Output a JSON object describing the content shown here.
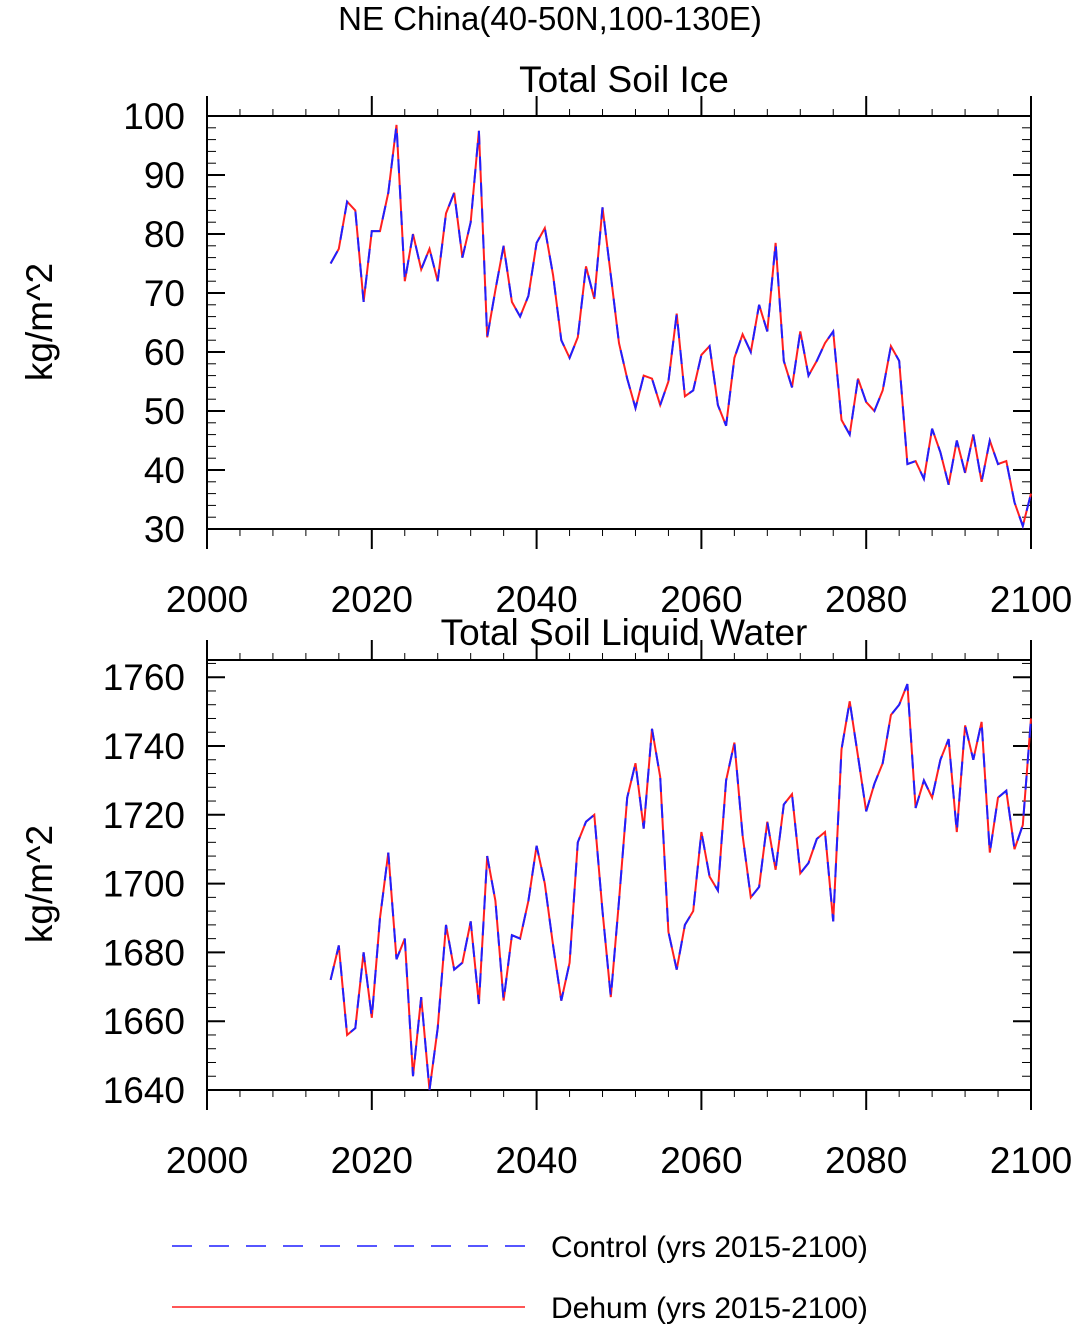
{
  "figure": {
    "title": "NE China(40-50N,100-130E)"
  },
  "colors": {
    "control": "#1f1fff",
    "dehum": "#ff1f1f",
    "axis": "#000000"
  },
  "legend": [
    {
      "label": "Control (yrs 2015-2100)",
      "style": "dashed",
      "color": "#1f1fff"
    },
    {
      "label": "Dehum (yrs 2015-2100)",
      "style": "solid",
      "color": "#ff1f1f"
    }
  ],
  "chart_data": [
    {
      "type": "line",
      "title": "Total Soil Ice",
      "ylabel": "kg/m^2",
      "xlabel": "",
      "xlim": [
        2000,
        2100
      ],
      "ylim": [
        30,
        100
      ],
      "xticks": [
        2000,
        2020,
        2040,
        2060,
        2080,
        2100
      ],
      "yticks": [
        30,
        40,
        50,
        60,
        70,
        80,
        90,
        100
      ],
      "grid": false,
      "x": [
        2015,
        2016,
        2017,
        2018,
        2019,
        2020,
        2021,
        2022,
        2023,
        2024,
        2025,
        2026,
        2027,
        2028,
        2029,
        2030,
        2031,
        2032,
        2033,
        2034,
        2035,
        2036,
        2037,
        2038,
        2039,
        2040,
        2041,
        2042,
        2043,
        2044,
        2045,
        2046,
        2047,
        2048,
        2049,
        2050,
        2051,
        2052,
        2053,
        2054,
        2055,
        2056,
        2057,
        2058,
        2059,
        2060,
        2061,
        2062,
        2063,
        2064,
        2065,
        2066,
        2067,
        2068,
        2069,
        2070,
        2071,
        2072,
        2073,
        2074,
        2075,
        2076,
        2077,
        2078,
        2079,
        2080,
        2081,
        2082,
        2083,
        2084,
        2085,
        2086,
        2087,
        2088,
        2089,
        2090,
        2091,
        2092,
        2093,
        2094,
        2095,
        2096,
        2097,
        2098,
        2099,
        2100
      ],
      "series": [
        {
          "name": "Control (yrs 2015-2100)",
          "values": [
            75.0,
            77.5,
            85.5,
            84.0,
            68.5,
            80.5,
            80.5,
            87.0,
            98.5,
            72.0,
            80.0,
            74.0,
            77.5,
            72.0,
            83.5,
            87.0,
            76.0,
            82.0,
            97.5,
            62.5,
            70.5,
            78.0,
            68.5,
            66.0,
            69.5,
            78.5,
            81.0,
            73.0,
            62.0,
            59.0,
            62.5,
            74.5,
            69.0,
            84.5,
            73.0,
            61.5,
            55.5,
            50.5,
            56.0,
            55.5,
            51.0,
            55.0,
            66.5,
            52.5,
            53.5,
            59.5,
            61.0,
            51.0,
            47.5,
            59.0,
            63.0,
            60.0,
            68.0,
            63.5,
            78.5,
            58.5,
            54.0,
            63.5,
            56.0,
            58.5,
            61.5,
            63.5,
            48.5,
            46.0,
            55.5,
            51.5,
            50.0,
            53.5,
            61.0,
            58.5,
            41.0,
            41.5,
            38.5,
            47.0,
            43.0,
            37.5,
            45.0,
            39.5,
            46.0,
            38.0,
            45.0,
            41.0,
            41.5,
            34.5,
            30.5,
            36.0
          ]
        },
        {
          "name": "Dehum (yrs 2015-2100)",
          "values": [
            75.0,
            77.5,
            85.5,
            84.0,
            68.5,
            80.5,
            80.5,
            87.0,
            98.5,
            72.0,
            80.0,
            74.0,
            77.5,
            72.0,
            83.5,
            87.0,
            76.0,
            82.0,
            97.5,
            62.5,
            70.5,
            78.0,
            68.5,
            66.0,
            69.5,
            78.5,
            81.0,
            73.0,
            62.0,
            59.0,
            62.5,
            74.5,
            69.0,
            84.5,
            73.0,
            61.5,
            55.5,
            50.5,
            56.0,
            55.5,
            51.0,
            55.0,
            66.5,
            52.5,
            53.5,
            59.5,
            61.0,
            51.0,
            47.5,
            59.0,
            63.0,
            60.0,
            68.0,
            63.5,
            78.5,
            58.5,
            54.0,
            63.5,
            56.0,
            58.5,
            61.5,
            63.5,
            48.5,
            46.0,
            55.5,
            51.5,
            50.0,
            53.5,
            61.0,
            58.5,
            41.0,
            41.5,
            38.5,
            47.0,
            43.0,
            37.5,
            45.0,
            39.5,
            46.0,
            38.0,
            45.0,
            41.0,
            41.5,
            34.5,
            30.5,
            36.0
          ]
        }
      ]
    },
    {
      "type": "line",
      "title": "Total Soil Liquid Water",
      "ylabel": "kg/m^2",
      "xlabel": "",
      "xlim": [
        2000,
        2100
      ],
      "ylim": [
        1640,
        1765
      ],
      "xticks": [
        2000,
        2020,
        2040,
        2060,
        2080,
        2100
      ],
      "yticks": [
        1640,
        1660,
        1680,
        1700,
        1720,
        1740,
        1760
      ],
      "grid": false,
      "x": [
        2015,
        2016,
        2017,
        2018,
        2019,
        2020,
        2021,
        2022,
        2023,
        2024,
        2025,
        2026,
        2027,
        2028,
        2029,
        2030,
        2031,
        2032,
        2033,
        2034,
        2035,
        2036,
        2037,
        2038,
        2039,
        2040,
        2041,
        2042,
        2043,
        2044,
        2045,
        2046,
        2047,
        2048,
        2049,
        2050,
        2051,
        2052,
        2053,
        2054,
        2055,
        2056,
        2057,
        2058,
        2059,
        2060,
        2061,
        2062,
        2063,
        2064,
        2065,
        2066,
        2067,
        2068,
        2069,
        2070,
        2071,
        2072,
        2073,
        2074,
        2075,
        2076,
        2077,
        2078,
        2079,
        2080,
        2081,
        2082,
        2083,
        2084,
        2085,
        2086,
        2087,
        2088,
        2089,
        2090,
        2091,
        2092,
        2093,
        2094,
        2095,
        2096,
        2097,
        2098,
        2099,
        2100
      ],
      "series": [
        {
          "name": "Control (yrs 2015-2100)",
          "values": [
            1672,
            1682,
            1656,
            1658,
            1680,
            1661,
            1690,
            1709,
            1678,
            1684,
            1644,
            1667,
            1640,
            1658,
            1688,
            1675,
            1677,
            1689,
            1665,
            1708,
            1695,
            1666,
            1685,
            1684,
            1695,
            1711,
            1700,
            1682,
            1666,
            1677,
            1712,
            1718,
            1720,
            1692,
            1667,
            1695,
            1725,
            1735,
            1716,
            1745,
            1731,
            1686,
            1675,
            1688,
            1692,
            1715,
            1702,
            1698,
            1730,
            1741,
            1714,
            1696,
            1699,
            1718,
            1704,
            1723,
            1726,
            1703,
            1706,
            1713,
            1715,
            1689,
            1739,
            1753,
            1737,
            1721,
            1729,
            1735,
            1749,
            1752,
            1758,
            1722,
            1730,
            1725,
            1736,
            1742,
            1715,
            1746,
            1736,
            1747,
            1709,
            1725,
            1727,
            1710,
            1717,
            1748
          ]
        },
        {
          "name": "Dehum (yrs 2015-2100)",
          "values": [
            1672,
            1682,
            1656,
            1658,
            1680,
            1661,
            1690,
            1709,
            1678,
            1684,
            1644,
            1667,
            1640,
            1658,
            1688,
            1675,
            1677,
            1689,
            1665,
            1708,
            1695,
            1666,
            1685,
            1684,
            1695,
            1711,
            1700,
            1682,
            1666,
            1677,
            1712,
            1718,
            1720,
            1692,
            1667,
            1695,
            1725,
            1735,
            1716,
            1745,
            1731,
            1686,
            1675,
            1688,
            1692,
            1715,
            1702,
            1698,
            1730,
            1741,
            1714,
            1696,
            1699,
            1718,
            1704,
            1723,
            1726,
            1703,
            1706,
            1713,
            1715,
            1689,
            1739,
            1753,
            1737,
            1721,
            1729,
            1735,
            1749,
            1752,
            1758,
            1722,
            1730,
            1725,
            1736,
            1742,
            1715,
            1746,
            1736,
            1747,
            1709,
            1725,
            1727,
            1710,
            1717,
            1748
          ]
        }
      ]
    }
  ]
}
